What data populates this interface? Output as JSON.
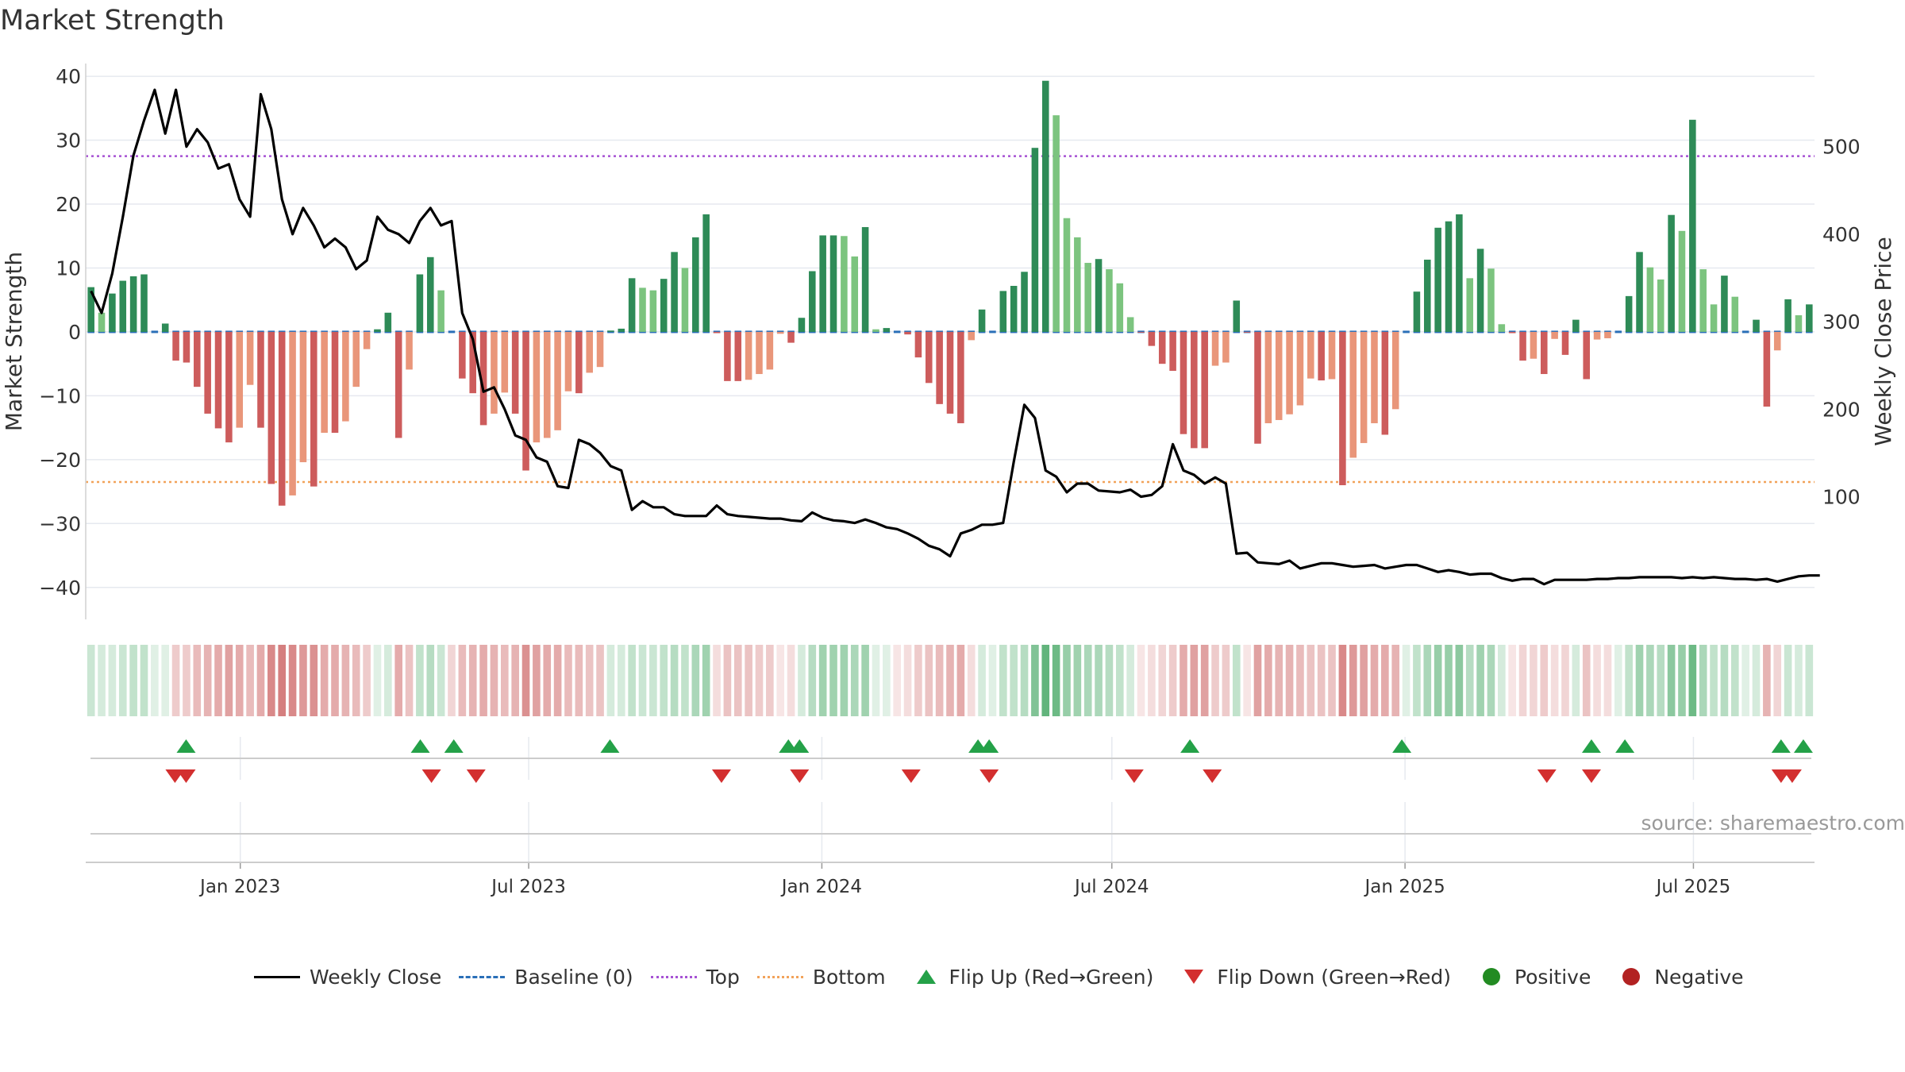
{
  "chart_data": {
    "type": "bar",
    "title": "Market Strength",
    "ylabel_left": "Market Strength",
    "ylabel_right": "Weekly Close Price",
    "ylim_left": [
      -45,
      42
    ],
    "ylim_right": [
      0,
      560
    ],
    "yticks_left": [
      40,
      30,
      20,
      10,
      0,
      -10,
      -20,
      -30,
      -40
    ],
    "ytick_labels_left": [
      "40",
      "30",
      "20",
      "10",
      "0",
      "−10",
      "−20",
      "−30",
      "−40"
    ],
    "yticks_right": [
      100,
      200,
      300,
      400,
      500
    ],
    "x_start": "2022-09-26",
    "x_end": "2025-09-15",
    "x_ticks": [
      "2023-01-01",
      "2023-07-01",
      "2024-01-01",
      "2024-07-01",
      "2025-01-01",
      "2025-07-01"
    ],
    "x_tick_labels": [
      "Jan 2023",
      "Jul 2023",
      "Jan 2024",
      "Jul 2024",
      "Jan 2025",
      "Jul 2025"
    ],
    "top_line": 27.5,
    "bottom_line": -23.5,
    "baseline": 0,
    "strength": [
      7,
      3,
      6,
      8,
      8.7,
      9,
      0,
      1.3,
      -4.5,
      -4.8,
      -8.6,
      -12.8,
      -15.1,
      -17.3,
      -15,
      -8.3,
      -15,
      -23.8,
      -27.2,
      -25.6,
      -20.4,
      -24.2,
      -15.8,
      -15.8,
      -14,
      -8.6,
      -2.7,
      0.4,
      3,
      -16.6,
      -5.9,
      9,
      11.7,
      6.5,
      0,
      -7.3,
      -9.6,
      -14.6,
      -12.8,
      -9.5,
      -12.8,
      -21.7,
      -17.3,
      -16.6,
      -15.4,
      -9.3,
      -9.6,
      -6.4,
      -5.5,
      0.2,
      0.5,
      8.4,
      6.9,
      6.5,
      8.3,
      12.5,
      10,
      14.8,
      18.4,
      -0.2,
      -7.7,
      -7.7,
      -7.5,
      -6.6,
      -5.9,
      -0.3,
      -1.7,
      2.2,
      9.5,
      15.1,
      15.1,
      15,
      11.8,
      16.4,
      0.4,
      0.6,
      0,
      -0.4,
      -4,
      -8,
      -11.3,
      -12.8,
      -14.3,
      -1.3,
      3.5,
      0,
      6.4,
      7.2,
      9.4,
      28.8,
      39.3,
      33.9,
      17.8,
      14.8,
      10.8,
      11.4,
      9.8,
      7.6,
      2.3,
      -0.1,
      -2.2,
      -5,
      -6.1,
      -16,
      -18.2,
      -18.2,
      -5.3,
      -4.8,
      4.9,
      -0.1,
      -17.5,
      -14.3,
      -13.8,
      -12.9,
      -11.5,
      -7.3,
      -7.6,
      -7.4,
      -24,
      -19.7,
      -17.4,
      -14.3,
      -16.1,
      -12.1,
      0,
      6.3,
      11.3,
      16.3,
      17.3,
      18.4,
      8.4,
      13,
      9.9,
      1.2,
      -0.2,
      -4.5,
      -4.2,
      -6.6,
      -1.1,
      -3.6,
      1.9,
      -7.4,
      -1.2,
      -1,
      0,
      5.6,
      12.5,
      10.1,
      8.2,
      18.3,
      15.8,
      33.2,
      9.8,
      4.3,
      8.8,
      5.5,
      0,
      1.9,
      -11.7,
      -2.9,
      5.1,
      2.6,
      4.3
    ],
    "weekly_close": [
      335,
      310,
      355,
      420,
      490,
      530,
      565,
      515,
      565,
      500,
      520,
      505,
      475,
      480,
      440,
      420,
      560,
      520,
      440,
      400,
      430,
      410,
      385,
      395,
      385,
      360,
      370,
      420,
      405,
      400,
      390,
      415,
      430,
      410,
      415,
      310,
      280,
      220,
      225,
      200,
      170,
      165,
      145,
      140,
      112,
      110,
      165,
      160,
      150,
      135,
      130,
      85,
      95,
      88,
      88,
      80,
      78,
      78,
      78,
      90,
      80,
      78,
      77,
      76,
      75,
      75,
      73,
      72,
      82,
      76,
      73,
      72,
      70,
      74,
      70,
      65,
      63,
      58,
      52,
      44,
      40,
      32,
      58,
      62,
      68,
      68,
      70,
      140,
      205,
      190,
      130,
      123,
      105,
      115,
      115,
      107,
      106,
      105,
      108,
      100,
      102,
      112,
      160,
      130,
      125,
      115,
      122,
      115,
      35,
      36,
      25,
      24,
      23,
      27,
      18,
      21,
      24,
      24,
      22,
      20,
      21,
      22,
      18,
      20,
      22,
      22,
      18,
      14,
      16,
      14,
      11,
      12,
      12,
      7,
      4,
      6,
      6,
      0,
      5,
      5,
      5,
      5,
      6,
      6,
      7,
      7,
      8,
      8,
      8,
      8,
      7,
      8,
      7,
      8,
      7,
      6,
      6,
      5,
      6,
      3,
      6,
      9,
      10,
      10
    ],
    "signal_strip": [
      0.25,
      0.2,
      0.2,
      0.25,
      0.3,
      0.3,
      0.15,
      0.15,
      -0.3,
      -0.3,
      -0.4,
      -0.45,
      -0.5,
      -0.55,
      -0.5,
      -0.4,
      -0.5,
      -0.7,
      -0.75,
      -0.7,
      -0.6,
      -0.65,
      -0.5,
      -0.5,
      -0.45,
      -0.4,
      -0.3,
      0.15,
      0.2,
      -0.5,
      -0.35,
      0.3,
      0.35,
      0.25,
      -0.25,
      -0.4,
      -0.45,
      -0.5,
      -0.45,
      -0.4,
      -0.45,
      -0.65,
      -0.55,
      -0.5,
      -0.5,
      -0.4,
      -0.4,
      -0.35,
      -0.35,
      0.2,
      0.2,
      0.3,
      0.25,
      0.25,
      0.3,
      0.35,
      0.3,
      0.4,
      0.45,
      -0.2,
      -0.35,
      -0.35,
      -0.35,
      -0.3,
      -0.3,
      -0.15,
      -0.2,
      0.2,
      0.35,
      0.45,
      0.45,
      0.45,
      0.4,
      0.45,
      0.15,
      0.15,
      -0.15,
      -0.2,
      -0.3,
      -0.35,
      -0.4,
      -0.45,
      -0.5,
      -0.2,
      0.2,
      0.15,
      0.3,
      0.3,
      0.35,
      0.6,
      0.75,
      0.7,
      0.5,
      0.45,
      0.4,
      0.4,
      0.35,
      0.3,
      0.2,
      -0.15,
      -0.2,
      -0.25,
      -0.3,
      -0.5,
      -0.55,
      -0.55,
      -0.3,
      -0.3,
      0.3,
      -0.15,
      -0.55,
      -0.5,
      -0.45,
      -0.45,
      -0.4,
      -0.35,
      -0.35,
      -0.35,
      -0.7,
      -0.6,
      -0.55,
      -0.5,
      -0.5,
      -0.45,
      0.15,
      0.3,
      0.4,
      0.5,
      0.5,
      0.55,
      0.35,
      0.45,
      0.4,
      0.2,
      -0.15,
      -0.25,
      -0.25,
      -0.3,
      -0.2,
      -0.25,
      0.2,
      -0.35,
      -0.2,
      -0.2,
      0.15,
      0.3,
      0.45,
      0.4,
      0.35,
      0.55,
      0.5,
      0.7,
      0.4,
      0.3,
      0.35,
      0.3,
      0.15,
      0.2,
      -0.45,
      -0.25,
      0.25,
      0.2,
      0.25
    ],
    "flip_up_dates": [
      "2022-11-28",
      "2023-04-24",
      "2023-05-15",
      "2023-08-21",
      "2023-12-11",
      "2023-12-18",
      "2024-04-08",
      "2024-04-15",
      "2024-08-19",
      "2024-12-30",
      "2025-04-28",
      "2025-05-19",
      "2025-08-25",
      "2025-09-08"
    ],
    "flip_down_dates": [
      "2022-11-21",
      "2022-11-28",
      "2023-05-01",
      "2023-05-29",
      "2023-10-30",
      "2023-12-18",
      "2024-02-26",
      "2024-04-15",
      "2024-07-15",
      "2024-09-02",
      "2025-03-31",
      "2025-04-28",
      "2025-08-25",
      "2025-09-01"
    ],
    "colors": {
      "pos_dark": "#2e8b57",
      "pos_light": "#7cc47f",
      "neg_dark": "#cd5c5c",
      "neg_light": "#e9967a",
      "close_line": "#000000",
      "baseline": "#2a6fb8",
      "top": "#a652d4",
      "bottom": "#f2a35a",
      "flip_up": "#24a148",
      "flip_down": "#d32f2f",
      "positive": "#228b22",
      "negative": "#b22222"
    },
    "legend": [
      {
        "label": "Weekly Close",
        "icon": "solid-line"
      },
      {
        "label": "Baseline (0)",
        "icon": "dashed-line"
      },
      {
        "label": "Top",
        "icon": "dotted-line"
      },
      {
        "label": "Bottom",
        "icon": "dotted-line"
      },
      {
        "label": "Flip Up (Red→Green)",
        "icon": "triangle-up"
      },
      {
        "label": "Flip Down (Green→Red)",
        "icon": "triangle-down"
      },
      {
        "label": "Positive",
        "icon": "circle"
      },
      {
        "label": "Negative",
        "icon": "circle"
      }
    ],
    "source": "source: sharemaestro.com"
  }
}
